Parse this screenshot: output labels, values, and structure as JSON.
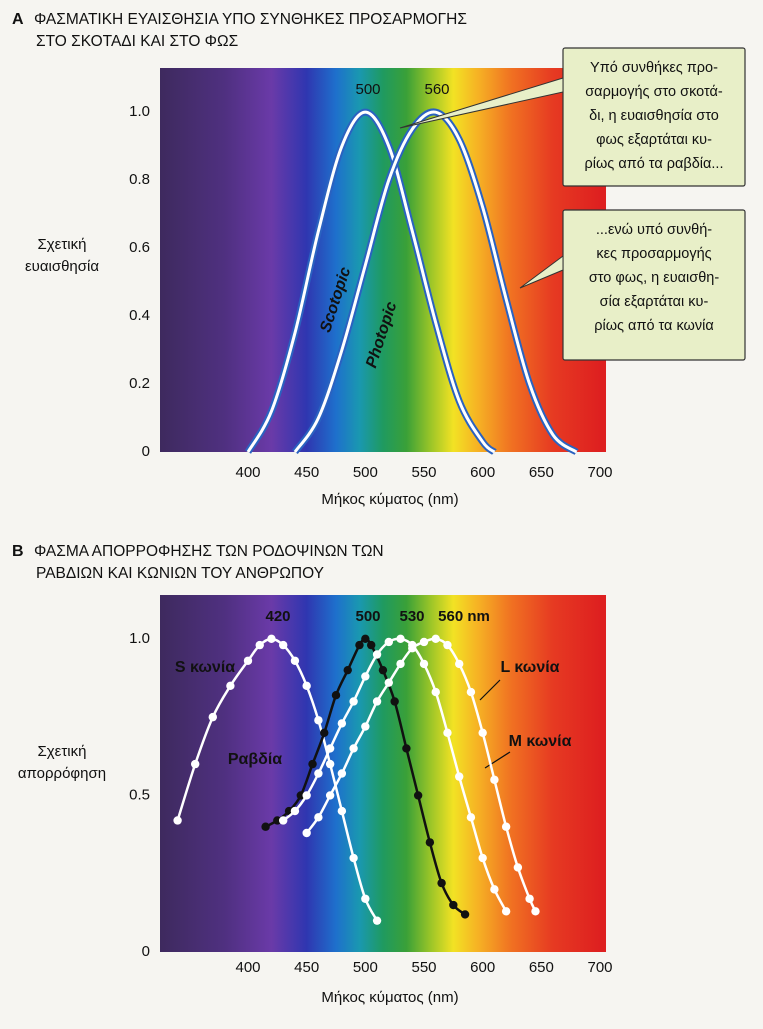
{
  "chart_data": [
    {
      "type": "line",
      "panel": "A",
      "title": [
        "ΦΑΣΜΑΤΙΚΗ ΕΥΑΙΣΘΗΣΙΑ ΥΠΟ ΣΥΝΘΗΚΕΣ ΠΡΟΣΑΡΜΟΓΗΣ",
        "ΣΤΟ ΣΚΟΤΑΔΙ ΚΑΙ ΣΤΟ ΦΩΣ"
      ],
      "ylabel": [
        "Σχετική",
        "ευαισθησία"
      ],
      "xlabel": "Μήκος κύματος (nm)",
      "xlim": [
        325,
        700
      ],
      "xticks": [
        400,
        450,
        500,
        550,
        600,
        650,
        700
      ],
      "ylim": [
        0,
        1.13
      ],
      "yticks": [
        0,
        0.2,
        0.4,
        0.6,
        0.8,
        {
          "value": 1,
          "label": "1.0"
        }
      ],
      "peak_labels": [
        "500",
        "560"
      ],
      "series": [
        {
          "name": "Scotopic",
          "color": "#2a62c0",
          "x": [
            400,
            420,
            440,
            460,
            480,
            500,
            520,
            540,
            560,
            580,
            600,
            610
          ],
          "values": [
            0,
            0.12,
            0.35,
            0.65,
            0.9,
            1.0,
            0.9,
            0.65,
            0.38,
            0.15,
            0.03,
            0
          ]
        },
        {
          "name": "Photopic",
          "color": "#2a62c0",
          "x": [
            440,
            460,
            480,
            500,
            520,
            540,
            560,
            580,
            600,
            620,
            640,
            660,
            680
          ],
          "values": [
            0,
            0.1,
            0.3,
            0.55,
            0.8,
            0.95,
            1.0,
            0.92,
            0.72,
            0.45,
            0.2,
            0.05,
            0
          ]
        }
      ],
      "callouts": [
        [
          "Υπό συνθήκες προ-",
          "σαρμογής στο σκοτά-",
          "δι, η ευαισθησία στο",
          "φως εξαρτάται κυ-",
          "ρίως από τα ραβδία..."
        ],
        [
          "...ενώ υπό συνθή-",
          "κες προσαρμογής",
          "στο φως, η ευαισθη-",
          "σία εξαρτάται κυ-",
          "ρίως από τα κωνία"
        ]
      ]
    },
    {
      "type": "line",
      "panel": "B",
      "title": [
        "ΦΑΣΜΑ ΑΠΟΡΡΟΦΗΣΗΣ ΤΩΝ ΡΟΔΟΨΙΝΩΝ ΤΩΝ",
        "ΡΑΒΔΙΩΝ ΚΑΙ ΚΩΝΙΩΝ ΤΟΥ ΑΝΘΡΩΠΟΥ"
      ],
      "ylabel": [
        "Σχετική",
        "απορρόφηση"
      ],
      "xlabel": "Μήκος κύματος (nm)",
      "xlim": [
        325,
        700
      ],
      "xticks": [
        400,
        450,
        500,
        550,
        600,
        650,
        700
      ],
      "ylim": [
        0,
        1.14
      ],
      "yticks": [
        0,
        0.5,
        {
          "value": 1,
          "label": "1.0"
        }
      ],
      "peak_labels": [
        "420",
        "500",
        "530",
        "560 nm"
      ],
      "series": [
        {
          "name": "S κωνία",
          "color": "#ffffff",
          "x": [
            340,
            355,
            370,
            385,
            400,
            410,
            420,
            430,
            440,
            450,
            460,
            470,
            480,
            490,
            500,
            510
          ],
          "values": [
            0.42,
            0.6,
            0.75,
            0.85,
            0.93,
            0.98,
            1.0,
            0.98,
            0.93,
            0.85,
            0.74,
            0.6,
            0.45,
            0.3,
            0.17,
            0.1
          ]
        },
        {
          "name": "Ραβδία",
          "color": "#111111",
          "x": [
            415,
            425,
            435,
            445,
            455,
            465,
            475,
            485,
            495,
            500,
            505,
            515,
            525,
            535,
            545,
            555,
            565,
            575,
            585
          ],
          "values": [
            0.4,
            0.42,
            0.45,
            0.5,
            0.6,
            0.7,
            0.82,
            0.9,
            0.98,
            1.0,
            0.98,
            0.9,
            0.8,
            0.65,
            0.5,
            0.35,
            0.22,
            0.15,
            0.12
          ]
        },
        {
          "name": "M κωνία",
          "color": "#ffffff",
          "x": [
            430,
            440,
            450,
            460,
            470,
            480,
            490,
            500,
            510,
            520,
            530,
            540,
            550,
            560,
            570,
            580,
            590,
            600,
            610,
            620
          ],
          "values": [
            0.42,
            0.45,
            0.5,
            0.57,
            0.65,
            0.73,
            0.8,
            0.88,
            0.95,
            0.99,
            1.0,
            0.98,
            0.92,
            0.83,
            0.7,
            0.56,
            0.43,
            0.3,
            0.2,
            0.13
          ]
        },
        {
          "name": "L κωνία",
          "color": "#ffffff",
          "x": [
            450,
            460,
            470,
            480,
            490,
            500,
            510,
            520,
            530,
            540,
            550,
            560,
            570,
            580,
            590,
            600,
            610,
            620,
            630,
            640,
            645
          ],
          "values": [
            0.38,
            0.43,
            0.5,
            0.57,
            0.65,
            0.72,
            0.8,
            0.86,
            0.92,
            0.97,
            0.99,
            1.0,
            0.98,
            0.92,
            0.83,
            0.7,
            0.55,
            0.4,
            0.27,
            0.17,
            0.13
          ]
        }
      ]
    }
  ]
}
